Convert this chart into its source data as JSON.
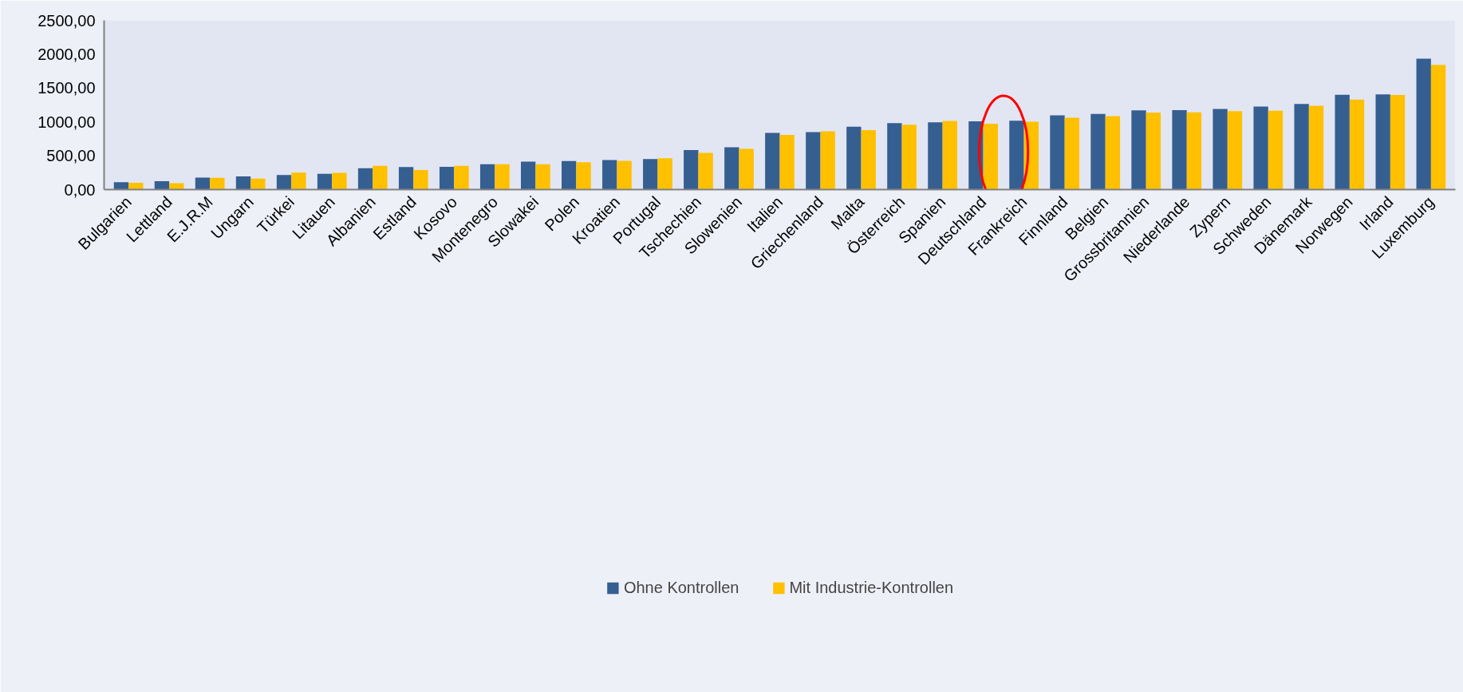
{
  "chart_data": {
    "type": "bar",
    "categories": [
      "Bulgarien",
      "Lettland",
      "E.J.R.M",
      "Ungarn",
      "Türkei",
      "Litauen",
      "Albanien",
      "Estland",
      "Kosovo",
      "Montenegro",
      "Slowakei",
      "Polen",
      "Kroatien",
      "Portugal",
      "Tschechien",
      "Slowenien",
      "Italien",
      "Griechenland",
      "Malta",
      "Österreich",
      "Spanien",
      "Deutschland",
      "Frankreich",
      "Finnland",
      "Belgien",
      "Grossbritannien",
      "Niederlande",
      "Zypern",
      "Schweden",
      "Dänemark",
      "Norwegen",
      "Irland",
      "Luxemburg"
    ],
    "series": [
      {
        "name": "Ohne Kontrollen",
        "color": "#355f91",
        "values": [
          109,
          125,
          177,
          195,
          216,
          234,
          314,
          332,
          336,
          373,
          414,
          422,
          435,
          451,
          585,
          624,
          836,
          849,
          928,
          983,
          994,
          1009,
          1016,
          1097,
          1116,
          1170,
          1172,
          1191,
          1225,
          1266,
          1400,
          1406,
          1934
        ]
      },
      {
        "name": "Mit Industrie-Kontrollen",
        "color": "#ffc000",
        "values": [
          100,
          95,
          173,
          161,
          250,
          248,
          350,
          289,
          352,
          373,
          373,
          405,
          424,
          464,
          543,
          600,
          809,
          860,
          880,
          959,
          1014,
          974,
          1002,
          1061,
          1085,
          1138,
          1140,
          1158,
          1164,
          1237,
          1331,
          1398,
          1843
        ]
      }
    ],
    "ylim": [
      0,
      2500
    ],
    "yticks": [
      {
        "value": 0,
        "label": "0,00"
      },
      {
        "value": 500,
        "label": "500,00"
      },
      {
        "value": 1000,
        "label": "1000,00"
      },
      {
        "value": 1500,
        "label": "1500,00"
      },
      {
        "value": 2000,
        "label": "2000,00"
      },
      {
        "value": 2500,
        "label": "2500,00"
      }
    ],
    "grid": false,
    "legend": "bottom"
  }
}
